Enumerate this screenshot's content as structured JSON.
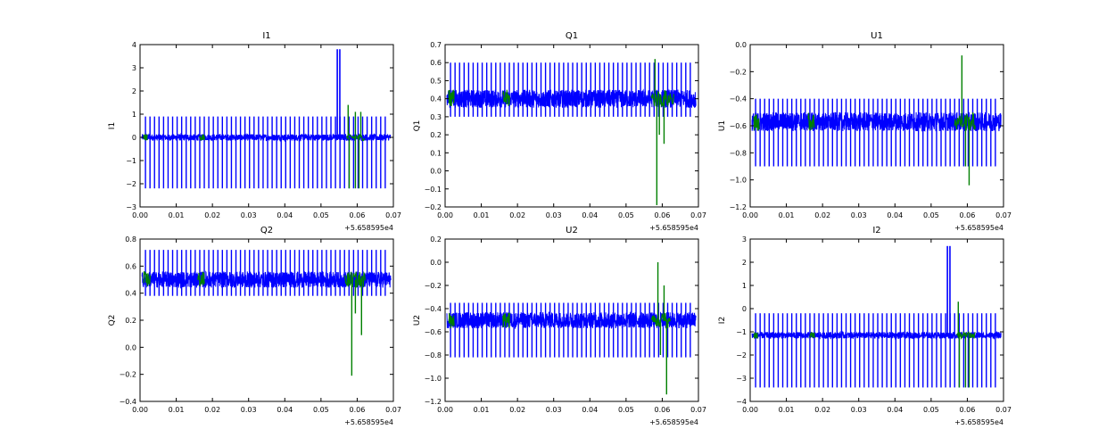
{
  "colors": {
    "primary": "#0000ff",
    "secondary": "#008000"
  },
  "chart_data": [
    {
      "type": "line",
      "title": "I1",
      "ylabel": "I1",
      "xlim": [
        0.0,
        0.07
      ],
      "ylim": [
        -3,
        4
      ],
      "xticks": [
        "0.00",
        "0.01",
        "0.02",
        "0.03",
        "0.04",
        "0.05",
        "0.06",
        "0.07"
      ],
      "yticks": [
        "−3",
        "−2",
        "−1",
        "0",
        "1",
        "2",
        "3",
        "4"
      ],
      "x_offset_label": "+5.658595e4",
      "baseline": 0.0,
      "noise": 0.14,
      "spike_up": 0.9,
      "spike_down": -2.2,
      "extra_spikes": [
        {
          "x": 0.0545,
          "y": 3.8
        },
        {
          "x": 0.0552,
          "y": 3.8
        }
      ],
      "green_segments": [
        [
          0.001,
          0.002,
          0.0
        ],
        [
          0.0165,
          0.0178,
          0.0
        ],
        [
          0.057,
          0.0622,
          0.0
        ]
      ],
      "green_spikes": [
        {
          "x": 0.0575,
          "y": 1.4
        },
        {
          "x": 0.0578,
          "y": -2.2
        },
        {
          "x": 0.0595,
          "y": -2.2
        },
        {
          "x": 0.0605,
          "y": -2.2
        },
        {
          "x": 0.061,
          "y": 1.1
        },
        {
          "x": 0.0595,
          "y": 1.1
        }
      ]
    },
    {
      "type": "line",
      "title": "Q1",
      "ylabel": "Q1",
      "xlim": [
        0.0,
        0.07
      ],
      "ylim": [
        -0.2,
        0.7
      ],
      "xticks": [
        "0.00",
        "0.01",
        "0.02",
        "0.03",
        "0.04",
        "0.05",
        "0.06",
        "0.07"
      ],
      "yticks": [
        "−0.2",
        "−0.1",
        "0.0",
        "0.1",
        "0.2",
        "0.3",
        "0.4",
        "0.5",
        "0.6",
        "0.7"
      ],
      "x_offset_label": "+5.658595e4",
      "baseline": 0.4,
      "noise": 0.05,
      "spike_up": 0.6,
      "spike_down": 0.3,
      "extra_spikes": [],
      "green_segments": [
        [
          0.001,
          0.0025,
          0.4
        ],
        [
          0.016,
          0.0178,
          0.4
        ],
        [
          0.057,
          0.0632,
          0.4
        ]
      ],
      "green_spikes": [
        {
          "x": 0.0585,
          "y": -0.19
        },
        {
          "x": 0.0592,
          "y": 0.2
        },
        {
          "x": 0.0605,
          "y": 0.15
        },
        {
          "x": 0.058,
          "y": 0.62
        }
      ]
    },
    {
      "type": "line",
      "title": "U1",
      "ylabel": "U1",
      "xlim": [
        0.0,
        0.07
      ],
      "ylim": [
        -1.2,
        0.0
      ],
      "xticks": [
        "0.00",
        "0.01",
        "0.02",
        "0.03",
        "0.04",
        "0.05",
        "0.06",
        "0.07"
      ],
      "yticks": [
        "−1.2",
        "−1.0",
        "−0.8",
        "−0.6",
        "−0.4",
        "−0.2",
        "0.0"
      ],
      "x_offset_label": "+5.658595e4",
      "baseline": -0.57,
      "noise": 0.07,
      "spike_up": -0.4,
      "spike_down": -0.9,
      "extra_spikes": [],
      "green_segments": [
        [
          0.001,
          0.0025,
          -0.57
        ],
        [
          0.016,
          0.0178,
          -0.57
        ],
        [
          0.0565,
          0.0622,
          -0.57
        ]
      ],
      "green_spikes": [
        {
          "x": 0.0585,
          "y": -0.08
        },
        {
          "x": 0.0605,
          "y": -1.04
        },
        {
          "x": 0.0595,
          "y": -0.9
        }
      ]
    },
    {
      "type": "line",
      "title": "Q2",
      "ylabel": "Q2",
      "xlim": [
        0.0,
        0.07
      ],
      "ylim": [
        -0.4,
        0.8
      ],
      "xticks": [
        "0.00",
        "0.01",
        "0.02",
        "0.03",
        "0.04",
        "0.05",
        "0.06",
        "0.07"
      ],
      "yticks": [
        "−0.4",
        "−0.2",
        "0.0",
        "0.2",
        "0.4",
        "0.6",
        "0.8"
      ],
      "x_offset_label": "+5.658595e4",
      "baseline": 0.5,
      "noise": 0.06,
      "spike_up": 0.72,
      "spike_down": 0.38,
      "extra_spikes": [],
      "green_segments": [
        [
          0.001,
          0.0028,
          0.5
        ],
        [
          0.016,
          0.0178,
          0.5
        ],
        [
          0.0565,
          0.0622,
          0.5
        ]
      ],
      "green_spikes": [
        {
          "x": 0.0585,
          "y": -0.21
        },
        {
          "x": 0.0612,
          "y": 0.09
        },
        {
          "x": 0.0595,
          "y": 0.25
        }
      ]
    },
    {
      "type": "line",
      "title": "U2",
      "ylabel": "U2",
      "xlim": [
        0.0,
        0.07
      ],
      "ylim": [
        -1.2,
        0.2
      ],
      "xticks": [
        "0.00",
        "0.01",
        "0.02",
        "0.03",
        "0.04",
        "0.05",
        "0.06",
        "0.07"
      ],
      "yticks": [
        "−1.2",
        "−1.0",
        "−0.8",
        "−0.6",
        "−0.4",
        "−0.2",
        "0.0",
        "0.2"
      ],
      "x_offset_label": "+5.658595e4",
      "baseline": -0.5,
      "noise": 0.07,
      "spike_up": -0.35,
      "spike_down": -0.82,
      "extra_spikes": [],
      "green_segments": [
        [
          0.001,
          0.0025,
          -0.5
        ],
        [
          0.016,
          0.0178,
          -0.5
        ],
        [
          0.057,
          0.0622,
          -0.5
        ]
      ],
      "green_spikes": [
        {
          "x": 0.0588,
          "y": 0.0
        },
        {
          "x": 0.0612,
          "y": -1.14
        },
        {
          "x": 0.0595,
          "y": -0.8
        },
        {
          "x": 0.0605,
          "y": -0.2
        }
      ]
    },
    {
      "type": "line",
      "title": "I2",
      "ylabel": "I2",
      "xlim": [
        0.0,
        0.07
      ],
      "ylim": [
        -4,
        3
      ],
      "xticks": [
        "0.00",
        "0.01",
        "0.02",
        "0.03",
        "0.04",
        "0.05",
        "0.06",
        "0.07"
      ],
      "yticks": [
        "−4",
        "−3",
        "−2",
        "−1",
        "0",
        "1",
        "2",
        "3"
      ],
      "x_offset_label": "+5.658595e4",
      "baseline": -1.15,
      "noise": 0.14,
      "spike_up": -0.2,
      "spike_down": -3.4,
      "extra_spikes": [
        {
          "x": 0.0545,
          "y": 2.7
        },
        {
          "x": 0.0552,
          "y": 2.7
        }
      ],
      "green_segments": [
        [
          0.001,
          0.002,
          -1.15
        ],
        [
          0.0165,
          0.0178,
          -1.15
        ],
        [
          0.057,
          0.0622,
          -1.15
        ]
      ],
      "green_spikes": [
        {
          "x": 0.0575,
          "y": 0.3
        },
        {
          "x": 0.0578,
          "y": -3.4
        },
        {
          "x": 0.0595,
          "y": -3.4
        },
        {
          "x": 0.0605,
          "y": -3.4
        }
      ]
    }
  ]
}
